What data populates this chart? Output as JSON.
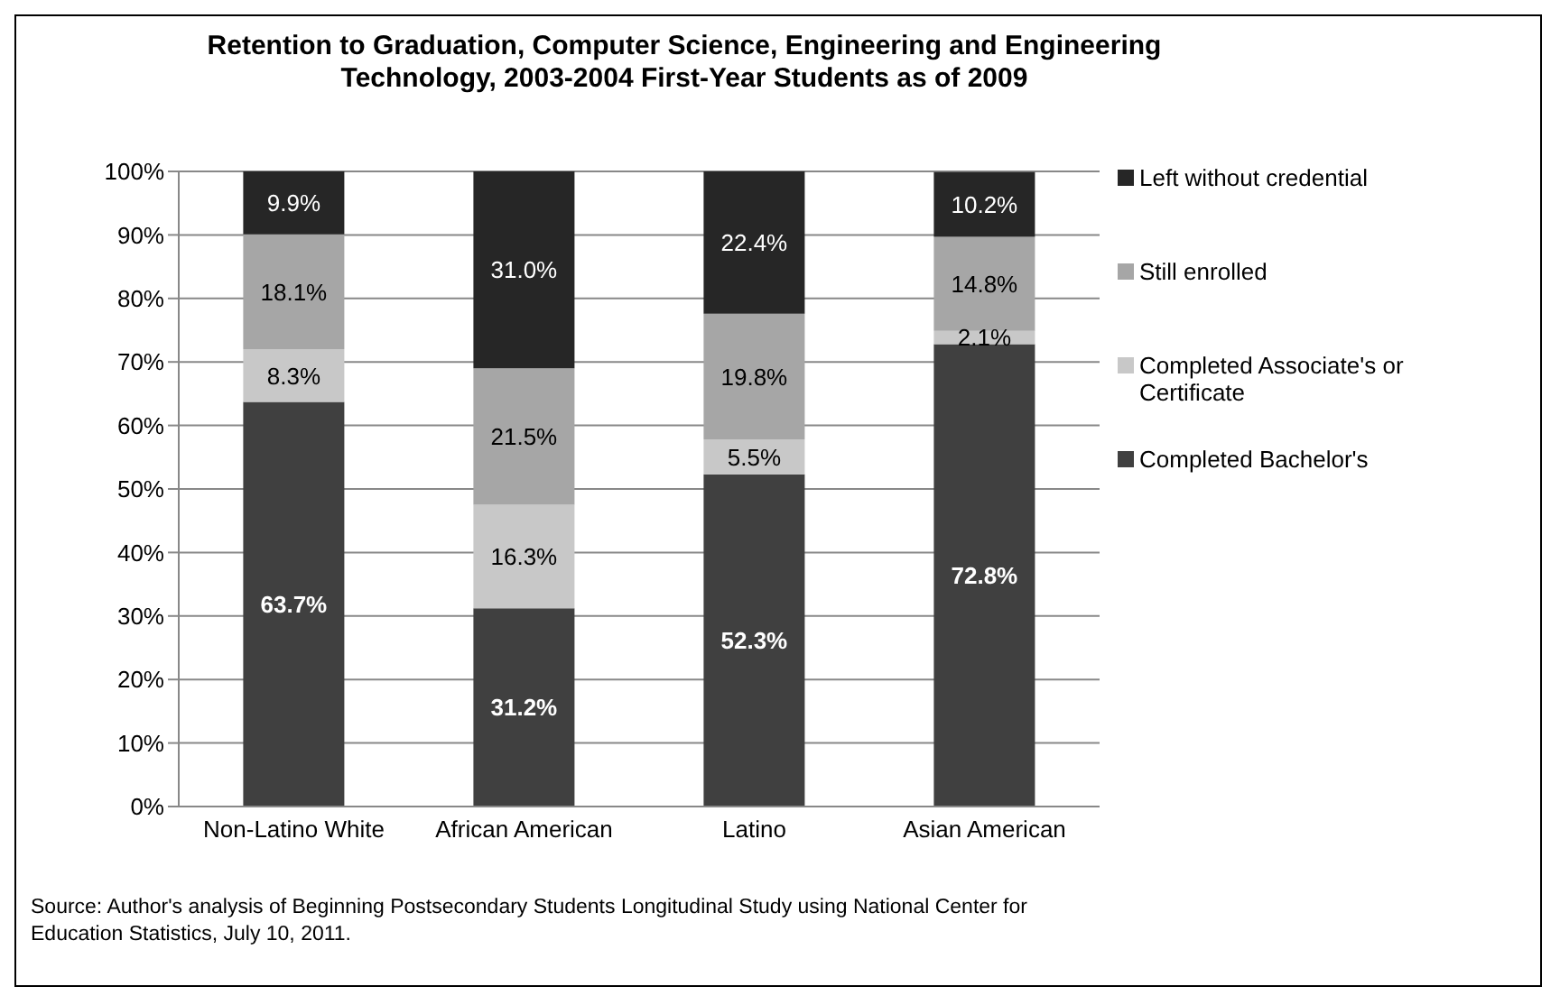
{
  "chart_data": {
    "type": "bar",
    "stacked": true,
    "title": "Retention to Graduation, Computer Science, Engineering and Engineering Technology, 2003-2004 First-Year Students as of 2009",
    "categories": [
      "Non-Latino White",
      "African American",
      "Latino",
      "Asian American"
    ],
    "series": [
      {
        "name": "Completed Bachelor's",
        "color": "#404040",
        "values": [
          63.7,
          31.2,
          52.3,
          72.8
        ],
        "value_labels": [
          "63.7%",
          "31.2%",
          "52.3%",
          "72.8%"
        ]
      },
      {
        "name": "Completed Associate's or Certificate",
        "color": "#c8c8c8",
        "values": [
          8.3,
          16.3,
          5.5,
          2.1
        ],
        "value_labels": [
          "8.3%",
          "16.3%",
          "5.5%",
          "2.1%"
        ]
      },
      {
        "name": "Still enrolled",
        "color": "#a6a6a6",
        "values": [
          18.1,
          21.5,
          19.8,
          14.8
        ],
        "value_labels": [
          "18.1%",
          "21.5%",
          "19.8%",
          "14.8%"
        ]
      },
      {
        "name": "Left without credential",
        "color": "#262626",
        "values": [
          9.9,
          31.0,
          22.4,
          10.2
        ],
        "value_labels": [
          "9.9%",
          "31.0%",
          "22.4%",
          "10.2%"
        ]
      }
    ],
    "ylim": [
      0,
      100
    ],
    "yticks": [
      {
        "value": 0,
        "label": "0%"
      },
      {
        "value": 10,
        "label": "10%"
      },
      {
        "value": 20,
        "label": "20%"
      },
      {
        "value": 30,
        "label": "30%"
      },
      {
        "value": 40,
        "label": "40%"
      },
      {
        "value": 50,
        "label": "50%"
      },
      {
        "value": 60,
        "label": "60%"
      },
      {
        "value": 70,
        "label": "70%"
      },
      {
        "value": 80,
        "label": "80%"
      },
      {
        "value": 90,
        "label": "90%"
      },
      {
        "value": 100,
        "label": "100%"
      }
    ],
    "grid": "y",
    "legend": "right",
    "annotations": [
      "Source: Author's analysis of Beginning Postsecondary Students Longitudinal Study using National Center for Education Statistics, July 10, 2011."
    ]
  }
}
